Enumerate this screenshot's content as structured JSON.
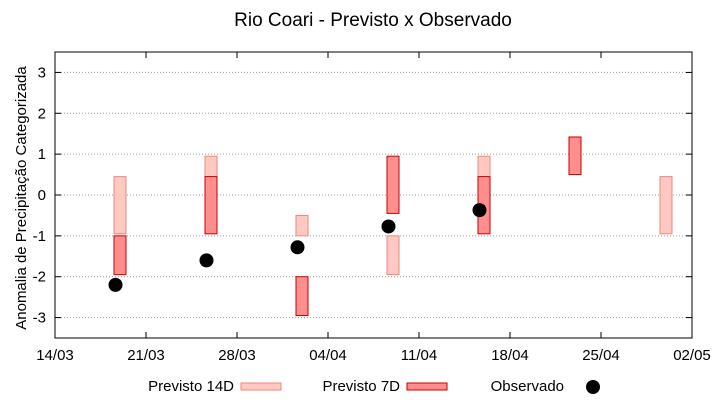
{
  "chart_data": {
    "type": "bar",
    "title": "Rio Coari - Previsto x Observado",
    "xlabel": "",
    "ylabel": "Anomalia de Precipitação Categorizada",
    "x_range": [
      "2019-03-14",
      "2019-05-02"
    ],
    "x_ticks": [
      {
        "date": "2019-03-14",
        "label": "14/03"
      },
      {
        "date": "2019-03-21",
        "label": "21/03"
      },
      {
        "date": "2019-03-28",
        "label": "28/03"
      },
      {
        "date": "2019-04-04",
        "label": "04/04"
      },
      {
        "date": "2019-04-11",
        "label": "11/04"
      },
      {
        "date": "2019-04-18",
        "label": "18/04"
      },
      {
        "date": "2019-04-25",
        "label": "25/04"
      },
      {
        "date": "2019-05-02",
        "label": "02/05"
      }
    ],
    "ylim": [
      -3.5,
      3.5
    ],
    "y_ticks": [
      {
        "value": 3,
        "label": "3"
      },
      {
        "value": 2,
        "label": "2"
      },
      {
        "value": 1,
        "label": "1"
      },
      {
        "value": 0,
        "label": "0"
      },
      {
        "value": -1,
        "label": "-1"
      },
      {
        "value": -2,
        "label": "-2"
      },
      {
        "value": -3,
        "label": "-3"
      }
    ],
    "grid": true,
    "legend_position": "bottom",
    "colors": {
      "forecast14_fill": "#ffc8c0",
      "forecast14_stroke": "#e98a80",
      "forecast7_fill": "#ff8e8e",
      "forecast7_stroke": "#c80000",
      "observed": "#000000"
    },
    "series": [
      {
        "name": "Previsto 14D",
        "kind": "range",
        "data": [
          {
            "date": "2019-03-19",
            "low": -0.95,
            "high": 0.45
          },
          {
            "date": "2019-03-26",
            "low": 0.45,
            "high": 0.95
          },
          {
            "date": "2019-04-02",
            "low": -1.0,
            "high": -0.5
          },
          {
            "date": "2019-04-09",
            "low": -1.95,
            "high": -1.0
          },
          {
            "date": "2019-04-16",
            "low": 0.45,
            "high": 0.95
          },
          {
            "date": "2019-04-30",
            "low": -0.95,
            "high": 0.45
          }
        ]
      },
      {
        "name": "Previsto 7D",
        "kind": "range",
        "data": [
          {
            "date": "2019-03-19",
            "low": -1.95,
            "high": -1.0
          },
          {
            "date": "2019-03-26",
            "low": -0.95,
            "high": 0.45
          },
          {
            "date": "2019-04-02",
            "low": -2.95,
            "high": -2.0
          },
          {
            "date": "2019-04-09",
            "low": -0.45,
            "high": 0.95
          },
          {
            "date": "2019-04-16",
            "low": -0.95,
            "high": 0.45
          },
          {
            "date": "2019-04-23",
            "low": 0.5,
            "high": 1.42
          }
        ]
      },
      {
        "name": "Observado",
        "kind": "point",
        "data": [
          {
            "date": "2019-03-19",
            "y": -2.2
          },
          {
            "date": "2019-03-26",
            "y": -1.6
          },
          {
            "date": "2019-04-02",
            "y": -1.28
          },
          {
            "date": "2019-04-09",
            "y": -0.77
          },
          {
            "date": "2019-04-16",
            "y": -0.37
          }
        ]
      }
    ]
  }
}
